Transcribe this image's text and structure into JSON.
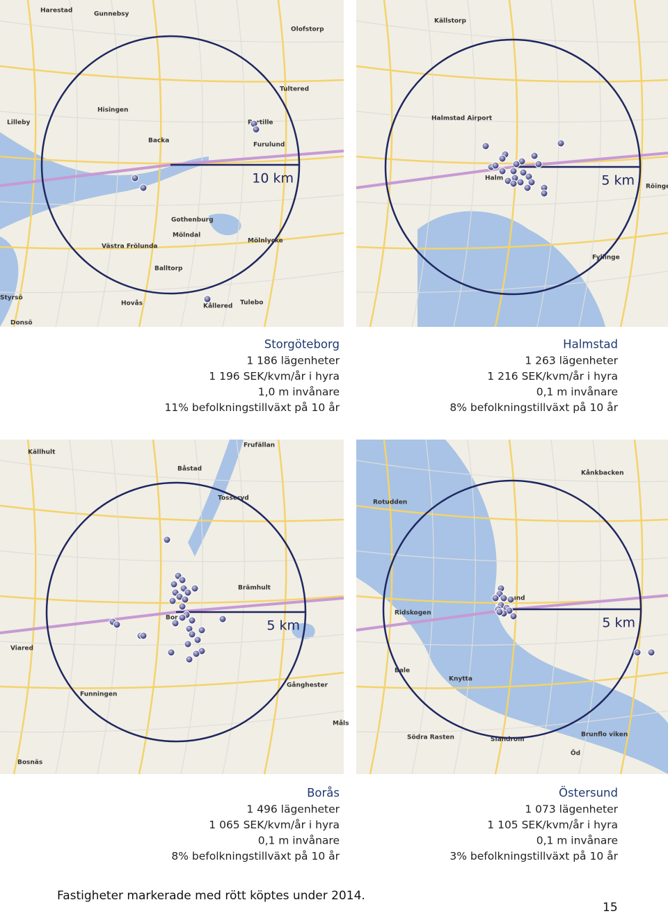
{
  "panels": [
    {
      "scale": "10 km",
      "title": "Storgöteborg",
      "lines": [
        "1 186 lägenheter",
        "1 196 SEK/kvm/år i hyra",
        "1,0 m invånare",
        "11% befolkningstillväxt på 10 år"
      ],
      "map_labels": [
        "Harestad",
        "Gunnebsy",
        "Olofstorp",
        "Tultered",
        "Hisingen",
        "Lilleby",
        "Partille",
        "Furulund",
        "Backa",
        "Gothenburg",
        "Mölndal",
        "Västra Frölunda",
        "Mölnlycke",
        "Balltorp",
        "Tulebo",
        "Kållered",
        "Styrsö",
        "Donsö",
        "Hovås"
      ]
    },
    {
      "scale": "5 km",
      "title": "Halmstad",
      "lines": [
        "1 263 lägenheter",
        "1 216 SEK/kvm/år i hyra",
        "0,1 m invånare",
        "8% befolkningstillväxt på 10 år"
      ],
      "map_labels": [
        "Källstorp",
        "Halmstad Airport",
        "Halm",
        "Röinge",
        "Fyllinge"
      ]
    },
    {
      "scale": "5 km",
      "title": "Borås",
      "lines": [
        "1 496 lägenheter",
        "1 065 SEK/kvm/år i hyra",
        "0,1 m invånare",
        "8% befolkningstillväxt på 10 år"
      ],
      "map_labels": [
        "Källhult",
        "Frufällan",
        "Båstad",
        "Tosseryd",
        "Brämhult",
        "Bor",
        "Viared",
        "Funningen",
        "Gånghester",
        "Bosnäs",
        "Måls"
      ]
    },
    {
      "scale": "5 km",
      "title": "Östersund",
      "lines": [
        "1 073 lägenheter",
        "1 105 SEK/kvm/år i hyra",
        "0,1 m invånare",
        "3% befolkningstillväxt på 10 år"
      ],
      "map_labels": [
        "Kånkbacken",
        "Rotudden",
        "sund",
        "Ridskogen",
        "Bale",
        "Knytta",
        "Brunflo viken",
        "Södra Rasten",
        "Slandrom",
        "Öd"
      ]
    }
  ],
  "footer": {
    "note": "Fastigheter markerade med rött köptes under 2014.",
    "page_number": "15"
  }
}
